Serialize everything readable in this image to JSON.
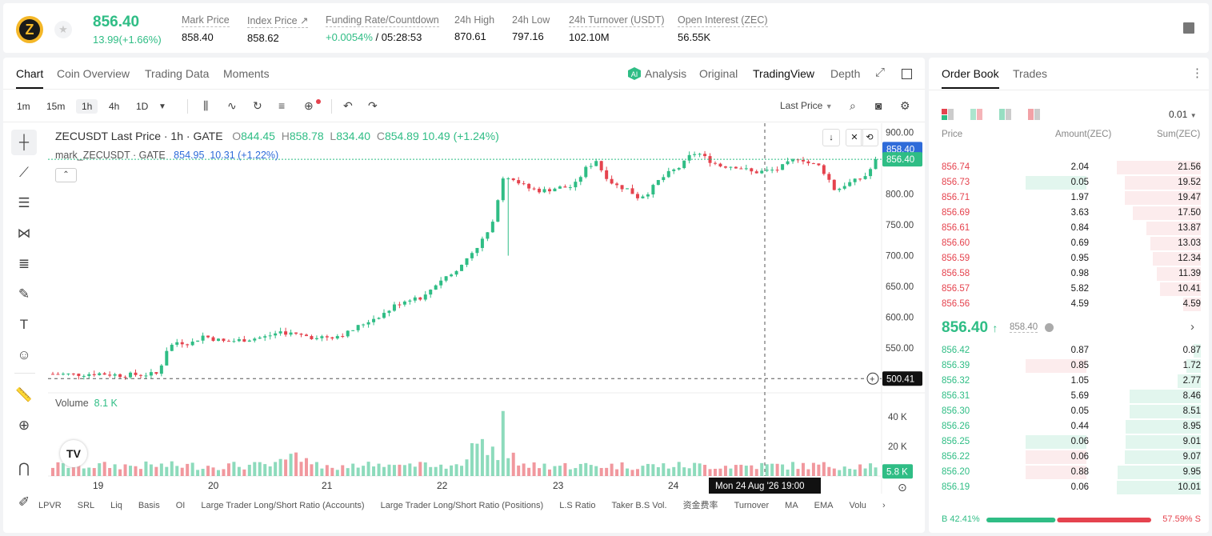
{
  "ticker": {
    "icon": "zcash-logo",
    "price": "856.40",
    "change": "13.99(+1.66%)",
    "stats": [
      {
        "label": "Mark Price",
        "value": "858.40"
      },
      {
        "label": "Index Price ↗",
        "value": "858.62"
      },
      {
        "label": "Funding Rate/Countdown",
        "value_green": "+0.0054%",
        "value": " / 05:28:53"
      },
      {
        "label": "24h High",
        "value": "870.61"
      },
      {
        "label": "24h Low",
        "value": "797.16"
      },
      {
        "label": "24h Turnover (USDT)",
        "value": "102.10M"
      },
      {
        "label": "Open Interest (ZEC)",
        "value": "56.55K"
      }
    ]
  },
  "chart_tabs": [
    "Chart",
    "Coin Overview",
    "Trading Data",
    "Moments"
  ],
  "view_tabs": [
    "Analysis",
    "Original",
    "TradingView",
    "Depth"
  ],
  "timeframes": [
    "1m",
    "15m",
    "1h",
    "4h",
    "1D"
  ],
  "active_timeframe": "1h",
  "price_type": "Last Price",
  "legend": {
    "symbol": "ZECUSDT Last Price · 1h · GATE",
    "o": "844.45",
    "h": "858.78",
    "l": "834.40",
    "c": "854.89",
    "chg": "10.49 (+1.24%)",
    "mark_symbol": "mark_ZECUSDT · GATE",
    "mark_value": "854.95",
    "mark_chg": "10.31 (+1.22%)",
    "volume_label": "Volume",
    "volume_value": "8.1 K"
  },
  "crosshair": {
    "price": "500.41",
    "time": "Mon 24 Aug '26   19:00"
  },
  "price_labels": {
    "mark": "858.40",
    "last": "856.40",
    "volume": "5.8 K"
  },
  "bottom_indicators": [
    "LPVR",
    "SRL",
    "Liq",
    "Basis",
    "OI",
    "Large Trader Long/Short Ratio (Accounts)",
    "Large Trader Long/Short Ratio (Positions)",
    "L.S Ratio",
    "Taker B.S Vol.",
    "资金费率",
    "Turnover",
    "MA",
    "EMA",
    "Volu"
  ],
  "chart_data": {
    "type": "candlestick",
    "interval": "1h",
    "x_ticks": [
      "19",
      "20",
      "21",
      "22",
      "23",
      "24"
    ],
    "y_ticks": [
      900,
      850,
      800,
      750,
      700,
      650,
      600,
      550
    ],
    "ylim": [
      480,
      915
    ],
    "volume_ticks": [
      "40 K",
      "20 K"
    ],
    "volume_ylim": [
      0,
      52
    ],
    "close_path": [
      [
        0,
        508
      ],
      [
        10,
        507
      ],
      [
        20,
        509
      ],
      [
        30,
        506
      ],
      [
        40,
        507
      ],
      [
        47,
        508
      ],
      [
        51,
        548
      ],
      [
        55,
        560
      ],
      [
        62,
        558
      ],
      [
        67,
        570
      ],
      [
        72,
        565
      ],
      [
        77,
        560
      ],
      [
        84,
        563
      ],
      [
        95,
        568
      ],
      [
        102,
        577
      ],
      [
        108,
        572
      ],
      [
        116,
        568
      ],
      [
        126,
        569
      ],
      [
        132,
        575
      ],
      [
        140,
        592
      ],
      [
        149,
        608
      ],
      [
        154,
        622
      ],
      [
        161,
        632
      ],
      [
        166,
        632
      ],
      [
        170,
        650
      ],
      [
        175,
        665
      ],
      [
        180,
        672
      ],
      [
        186,
        700
      ],
      [
        191,
        720
      ],
      [
        195,
        740
      ],
      [
        198,
        760
      ],
      [
        200,
        825
      ],
      [
        203,
        830
      ],
      [
        207,
        822
      ],
      [
        212,
        810
      ],
      [
        219,
        805
      ],
      [
        225,
        810
      ],
      [
        233,
        812
      ],
      [
        238,
        840
      ],
      [
        243,
        855
      ],
      [
        246,
        835
      ],
      [
        251,
        815
      ],
      [
        257,
        808
      ],
      [
        262,
        794
      ],
      [
        267,
        805
      ],
      [
        271,
        822
      ],
      [
        276,
        835
      ],
      [
        281,
        845
      ],
      [
        285,
        862
      ],
      [
        288,
        868
      ],
      [
        292,
        858
      ],
      [
        298,
        846
      ],
      [
        306,
        845
      ],
      [
        313,
        835
      ],
      [
        320,
        838
      ],
      [
        324,
        840
      ],
      [
        330,
        852
      ],
      [
        334,
        860
      ],
      [
        338,
        850
      ],
      [
        343,
        845
      ],
      [
        346,
        830
      ],
      [
        350,
        805
      ],
      [
        354,
        815
      ],
      [
        358,
        820
      ],
      [
        363,
        828
      ],
      [
        366,
        842
      ],
      [
        368,
        856
      ]
    ],
    "candle_count": 160,
    "volume_k": {
      "last": 5.8,
      "max_bar": 44
    },
    "legend_ohlc": {
      "open": 844.45,
      "high": 858.78,
      "low": 834.4,
      "close": 854.89
    }
  },
  "order_book": {
    "tabs": [
      "Order Book",
      "Trades"
    ],
    "precision": "0.01",
    "headers": [
      "Price",
      "Amount(ZEC)",
      "Sum(ZEC)"
    ],
    "asks": [
      {
        "price": "856.74",
        "amount": "2.04",
        "sum": "21.56",
        "depth": 21.56,
        "hl": false
      },
      {
        "price": "856.73",
        "amount": "0.05",
        "sum": "19.52",
        "depth": 19.52,
        "hl": true
      },
      {
        "price": "856.71",
        "amount": "1.97",
        "sum": "19.47",
        "depth": 19.47,
        "hl": false
      },
      {
        "price": "856.69",
        "amount": "3.63",
        "sum": "17.50",
        "depth": 17.5,
        "hl": false
      },
      {
        "price": "856.61",
        "amount": "0.84",
        "sum": "13.87",
        "depth": 13.87,
        "hl": false
      },
      {
        "price": "856.60",
        "amount": "0.69",
        "sum": "13.03",
        "depth": 13.03,
        "hl": false
      },
      {
        "price": "856.59",
        "amount": "0.95",
        "sum": "12.34",
        "depth": 12.34,
        "hl": false
      },
      {
        "price": "856.58",
        "amount": "0.98",
        "sum": "11.39",
        "depth": 11.39,
        "hl": false
      },
      {
        "price": "856.57",
        "amount": "5.82",
        "sum": "10.41",
        "depth": 10.41,
        "hl": false
      },
      {
        "price": "856.56",
        "amount": "4.59",
        "sum": "4.59",
        "depth": 4.59,
        "hl": false
      }
    ],
    "last_price": "856.40",
    "mark_price": "858.40",
    "bids": [
      {
        "price": "856.42",
        "amount": "0.87",
        "sum": "0.87",
        "depth": 0.87,
        "hl": ""
      },
      {
        "price": "856.39",
        "amount": "0.85",
        "sum": "1.72",
        "depth": 1.72,
        "hl": "red"
      },
      {
        "price": "856.32",
        "amount": "1.05",
        "sum": "2.77",
        "depth": 2.77,
        "hl": ""
      },
      {
        "price": "856.31",
        "amount": "5.69",
        "sum": "8.46",
        "depth": 8.46,
        "hl": ""
      },
      {
        "price": "856.30",
        "amount": "0.05",
        "sum": "8.51",
        "depth": 8.51,
        "hl": ""
      },
      {
        "price": "856.26",
        "amount": "0.44",
        "sum": "8.95",
        "depth": 8.95,
        "hl": ""
      },
      {
        "price": "856.25",
        "amount": "0.06",
        "sum": "9.01",
        "depth": 9.01,
        "hl": "green"
      },
      {
        "price": "856.22",
        "amount": "0.06",
        "sum": "9.07",
        "depth": 9.07,
        "hl": "red"
      },
      {
        "price": "856.20",
        "amount": "0.88",
        "sum": "9.95",
        "depth": 9.95,
        "hl": "red"
      },
      {
        "price": "856.19",
        "amount": "0.06",
        "sum": "10.01",
        "depth": 10.01,
        "hl": ""
      }
    ],
    "buy_pct": "42.41%",
    "sell_pct": "57.59%",
    "buy_ratio": 0.4241,
    "buy_label": "B",
    "sell_label": "S"
  },
  "colors": {
    "up": "#2fbd85",
    "down": "#e5434e",
    "mark_blue": "#2e6bd9"
  }
}
